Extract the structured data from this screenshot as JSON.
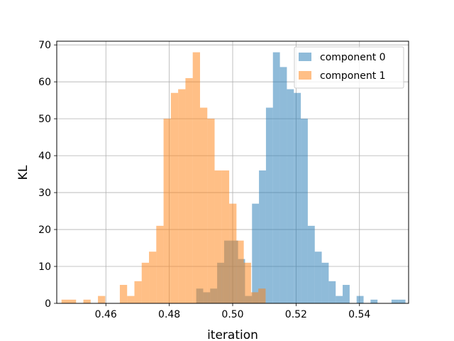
{
  "chart_data": {
    "type": "histogram",
    "xlabel": "iteration",
    "ylabel": "KL",
    "xlim": [
      0.4445,
      0.5555
    ],
    "ylim": [
      0,
      71
    ],
    "x_ticks": [
      "0.46",
      "0.48",
      "0.50",
      "0.52",
      "0.54"
    ],
    "x_tick_values": [
      0.46,
      0.48,
      0.5,
      0.52,
      0.54
    ],
    "y_ticks": [
      "0",
      "10",
      "20",
      "30",
      "40",
      "50",
      "60",
      "70"
    ],
    "y_tick_values": [
      0,
      10,
      20,
      30,
      40,
      50,
      60,
      70
    ],
    "grid": true,
    "legend_position": "top-right",
    "series": [
      {
        "name": "component 0",
        "color": "#1f77b4",
        "alpha": 0.5,
        "bins": [
          {
            "x0": 0.4885,
            "x1": 0.4907,
            "count": 4
          },
          {
            "x0": 0.4907,
            "x1": 0.4929,
            "count": 3
          },
          {
            "x0": 0.4929,
            "x1": 0.4951,
            "count": 4
          },
          {
            "x0": 0.4951,
            "x1": 0.4973,
            "count": 11
          },
          {
            "x0": 0.4973,
            "x1": 0.4995,
            "count": 17
          },
          {
            "x0": 0.4995,
            "x1": 0.5017,
            "count": 17
          },
          {
            "x0": 0.5017,
            "x1": 0.5039,
            "count": 12
          },
          {
            "x0": 0.5039,
            "x1": 0.5061,
            "count": 2
          },
          {
            "x0": 0.5061,
            "x1": 0.5083,
            "count": 27
          },
          {
            "x0": 0.5083,
            "x1": 0.5105,
            "count": 36
          },
          {
            "x0": 0.5105,
            "x1": 0.5127,
            "count": 53
          },
          {
            "x0": 0.5127,
            "x1": 0.5149,
            "count": 68
          },
          {
            "x0": 0.5149,
            "x1": 0.5171,
            "count": 64
          },
          {
            "x0": 0.5171,
            "x1": 0.5193,
            "count": 58
          },
          {
            "x0": 0.5193,
            "x1": 0.5215,
            "count": 57
          },
          {
            "x0": 0.5215,
            "x1": 0.5237,
            "count": 50
          },
          {
            "x0": 0.5237,
            "x1": 0.5259,
            "count": 21
          },
          {
            "x0": 0.5259,
            "x1": 0.5281,
            "count": 14
          },
          {
            "x0": 0.5281,
            "x1": 0.5303,
            "count": 11
          },
          {
            "x0": 0.5303,
            "x1": 0.5325,
            "count": 6
          },
          {
            "x0": 0.5325,
            "x1": 0.5347,
            "count": 2
          },
          {
            "x0": 0.5347,
            "x1": 0.5369,
            "count": 5
          },
          {
            "x0": 0.5391,
            "x1": 0.5413,
            "count": 2
          },
          {
            "x0": 0.5435,
            "x1": 0.5457,
            "count": 1
          },
          {
            "x0": 0.5501,
            "x1": 0.5523,
            "count": 1
          },
          {
            "x0": 0.5523,
            "x1": 0.5545,
            "count": 1
          }
        ]
      },
      {
        "name": "component 1",
        "color": "#ff7f0e",
        "alpha": 0.5,
        "bins": [
          {
            "x0": 0.446,
            "x1": 0.4483,
            "count": 1
          },
          {
            "x0": 0.4483,
            "x1": 0.4506,
            "count": 1
          },
          {
            "x0": 0.4529,
            "x1": 0.4552,
            "count": 1
          },
          {
            "x0": 0.4575,
            "x1": 0.4598,
            "count": 2
          },
          {
            "x0": 0.4644,
            "x1": 0.4667,
            "count": 5
          },
          {
            "x0": 0.4667,
            "x1": 0.469,
            "count": 2
          },
          {
            "x0": 0.469,
            "x1": 0.4713,
            "count": 6
          },
          {
            "x0": 0.4713,
            "x1": 0.4736,
            "count": 11
          },
          {
            "x0": 0.4736,
            "x1": 0.4759,
            "count": 14
          },
          {
            "x0": 0.4759,
            "x1": 0.4782,
            "count": 21
          },
          {
            "x0": 0.4782,
            "x1": 0.4805,
            "count": 50
          },
          {
            "x0": 0.4805,
            "x1": 0.4828,
            "count": 57
          },
          {
            "x0": 0.4828,
            "x1": 0.4851,
            "count": 58
          },
          {
            "x0": 0.4851,
            "x1": 0.4874,
            "count": 61
          },
          {
            "x0": 0.4874,
            "x1": 0.4897,
            "count": 68
          },
          {
            "x0": 0.4897,
            "x1": 0.492,
            "count": 53
          },
          {
            "x0": 0.492,
            "x1": 0.4943,
            "count": 50
          },
          {
            "x0": 0.4943,
            "x1": 0.4966,
            "count": 36
          },
          {
            "x0": 0.4966,
            "x1": 0.4989,
            "count": 36
          },
          {
            "x0": 0.4989,
            "x1": 0.5012,
            "count": 27
          },
          {
            "x0": 0.5012,
            "x1": 0.5035,
            "count": 17
          },
          {
            "x0": 0.5035,
            "x1": 0.5058,
            "count": 11
          },
          {
            "x0": 0.5058,
            "x1": 0.5081,
            "count": 3
          },
          {
            "x0": 0.5081,
            "x1": 0.5104,
            "count": 4
          }
        ]
      }
    ]
  }
}
